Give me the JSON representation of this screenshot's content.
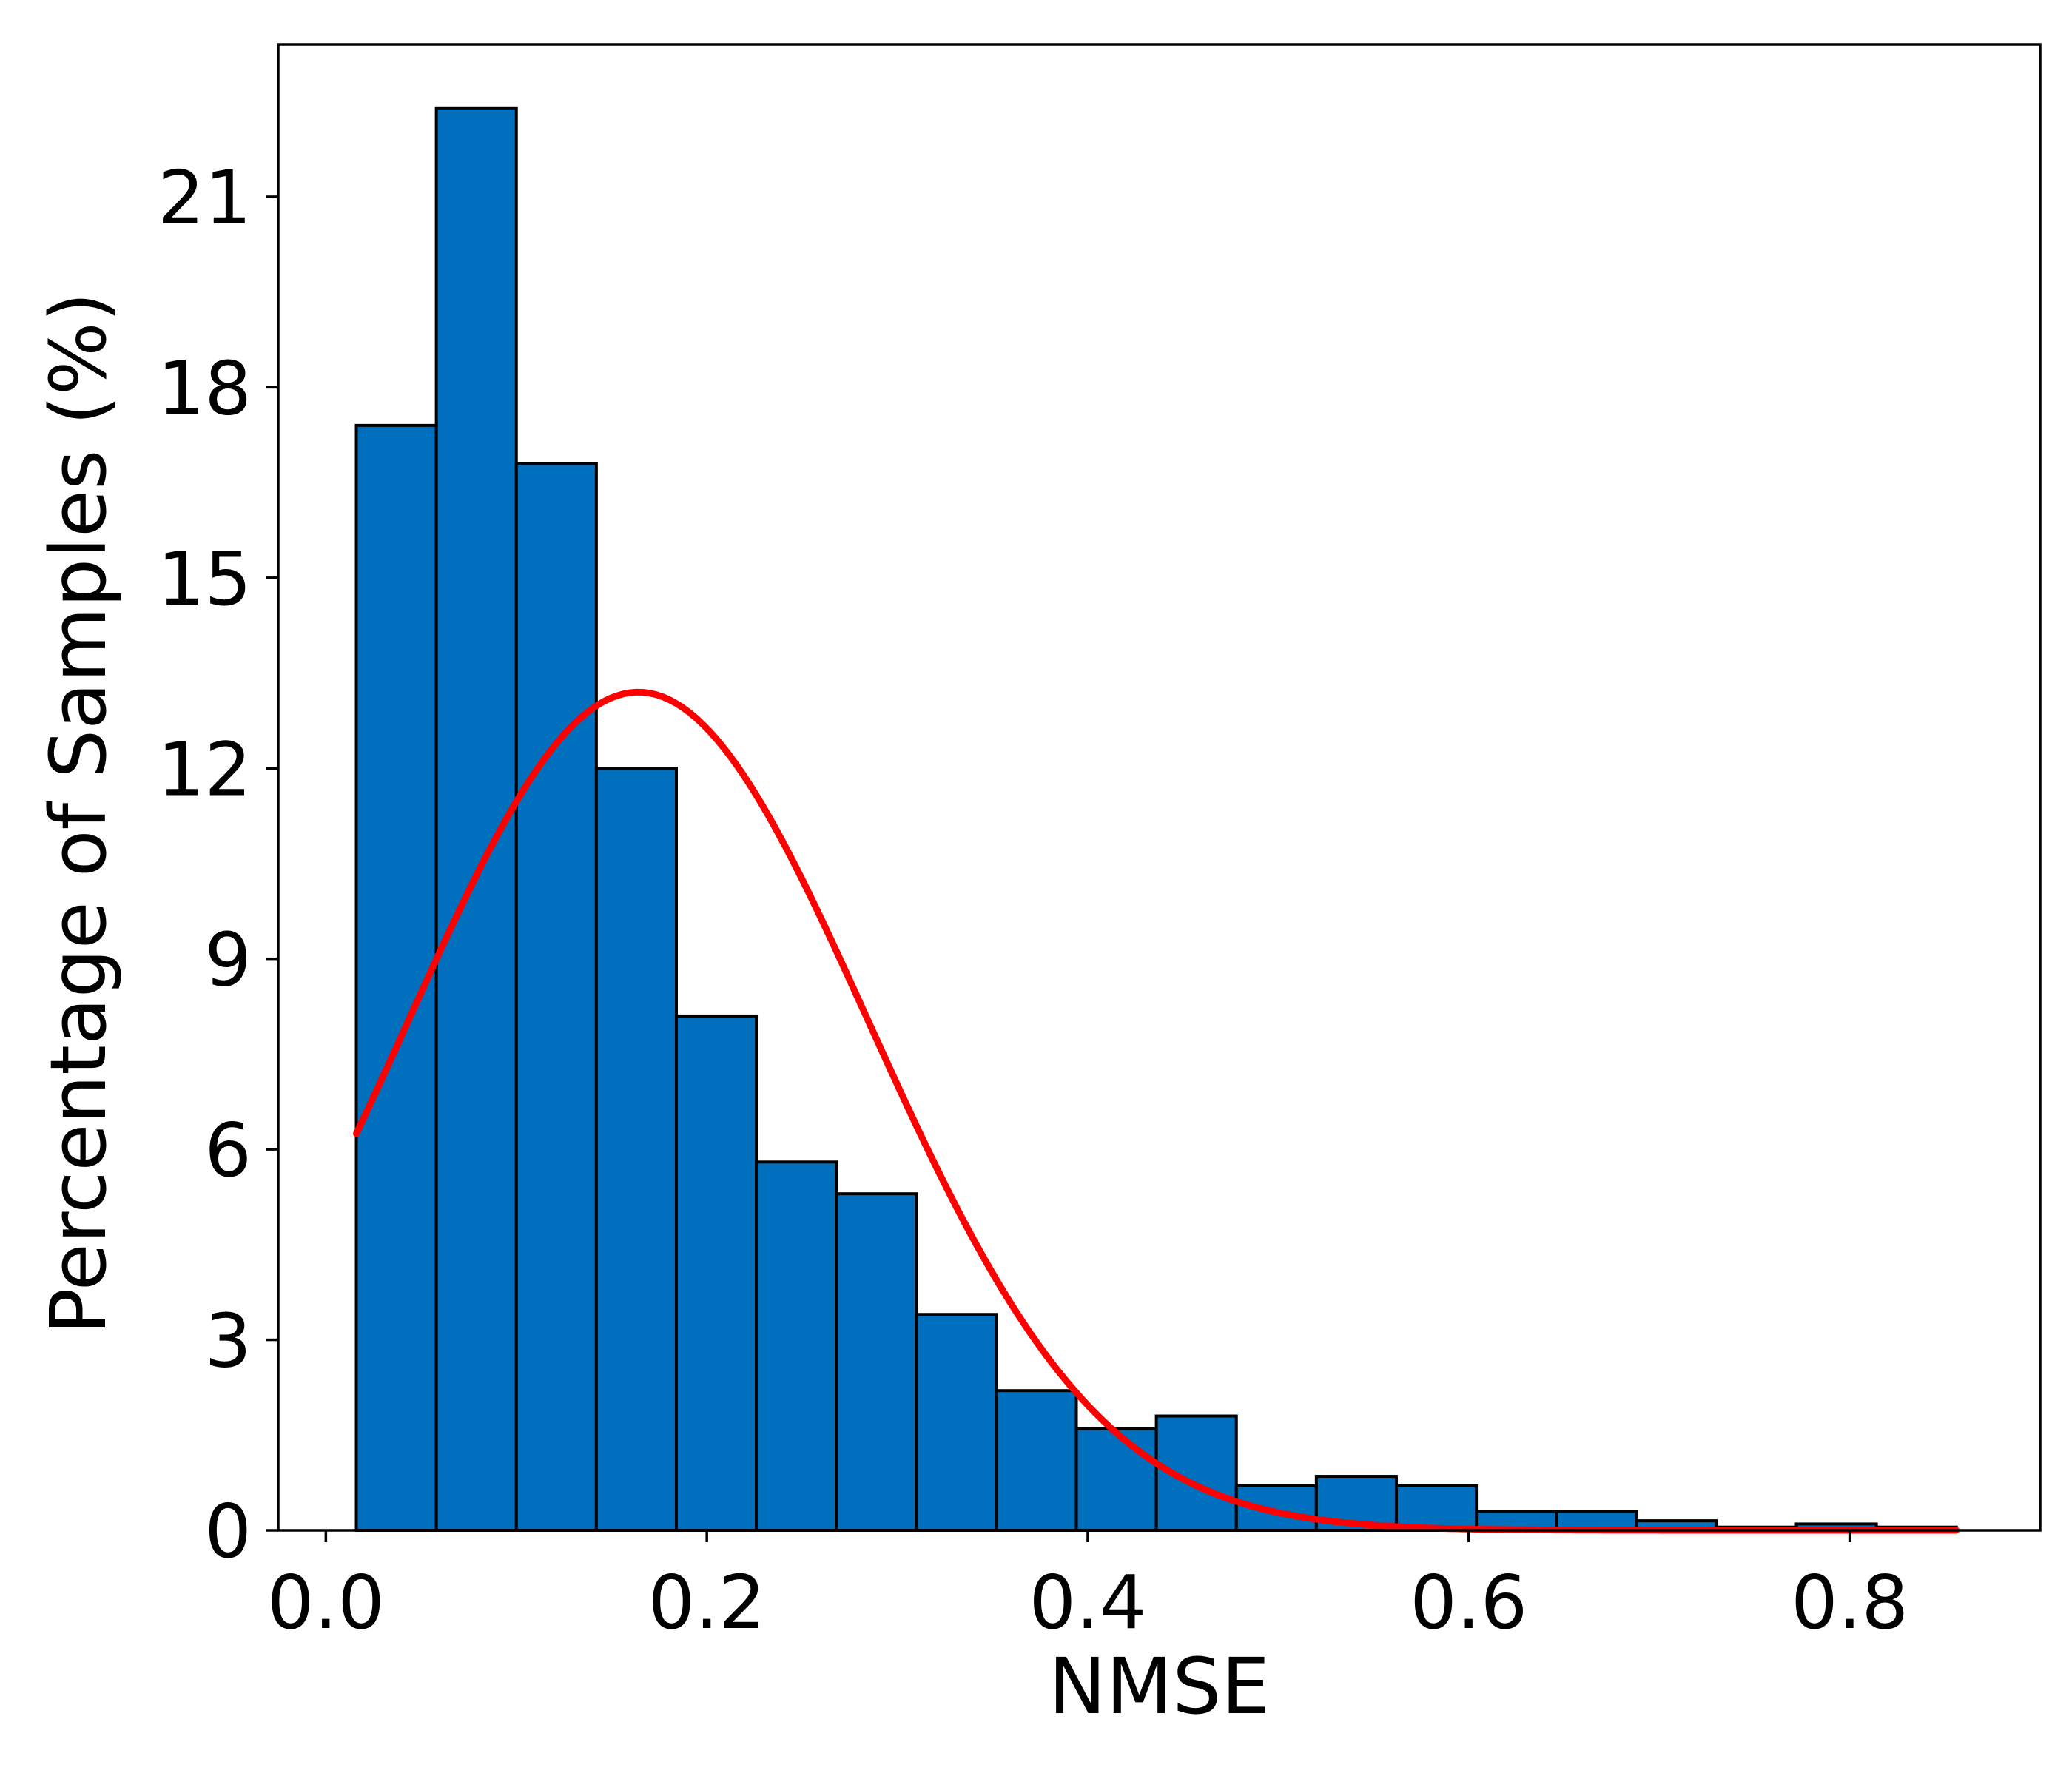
{
  "chart_data": {
    "type": "bar",
    "subtype": "histogram",
    "title": "",
    "xlabel": "NMSE",
    "ylabel": "Percentage of Samples (%)",
    "xlim": [
      -0.025,
      0.9
    ],
    "ylim": [
      0,
      23.4
    ],
    "xticks": [
      0.0,
      0.2,
      0.4,
      0.6,
      0.8
    ],
    "xtick_labels": [
      "0.0",
      "0.2",
      "0.4",
      "0.6",
      "0.8"
    ],
    "yticks": [
      0,
      3,
      6,
      9,
      12,
      15,
      18,
      21
    ],
    "ytick_labels": [
      "0",
      "3",
      "6",
      "9",
      "12",
      "15",
      "18",
      "21"
    ],
    "grid": false,
    "legend": "none",
    "bar_color": "#0070BE",
    "bar_edge_color": "#000000",
    "curve_color": "#FF0000",
    "bin_edges": [
      0.016,
      0.058,
      0.1,
      0.142,
      0.184,
      0.226,
      0.268,
      0.31,
      0.352,
      0.394,
      0.436,
      0.478,
      0.52,
      0.562,
      0.604,
      0.646,
      0.688,
      0.73,
      0.772,
      0.814,
      0.856
    ],
    "values": [
      17.4,
      22.4,
      16.8,
      12.0,
      8.1,
      5.8,
      5.3,
      3.4,
      2.2,
      1.6,
      1.8,
      0.7,
      0.85,
      0.7,
      0.3,
      0.3,
      0.15,
      0.05,
      0.1,
      0.05
    ],
    "fit_curve": {
      "kind": "normal",
      "mean": 0.164,
      "std": 0.121,
      "peak": 13.2,
      "x_range": [
        0.016,
        0.856
      ]
    }
  }
}
